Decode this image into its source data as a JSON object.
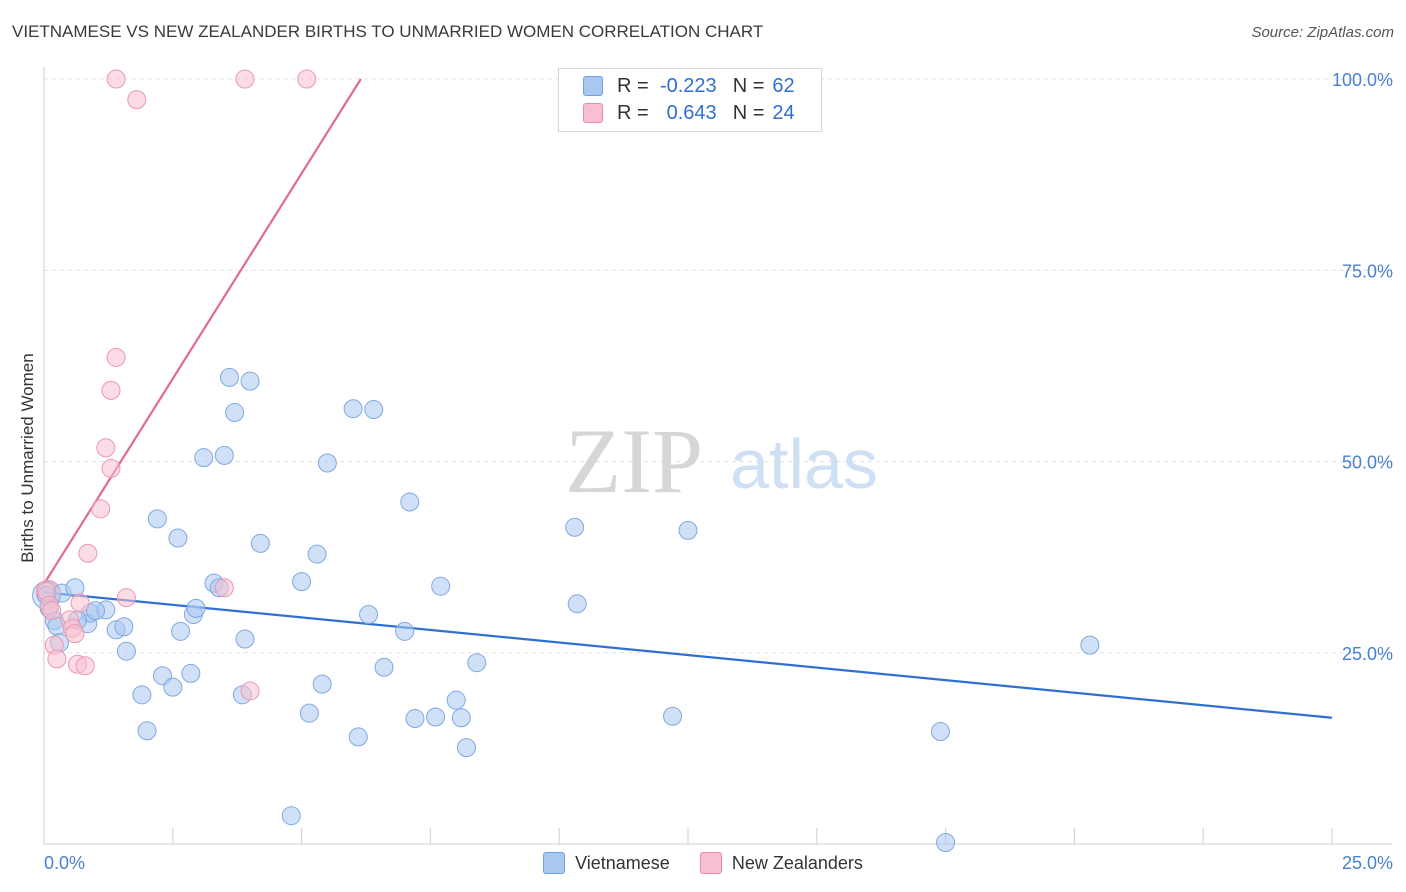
{
  "title": "VIETNAMESE VS NEW ZEALANDER BIRTHS TO UNMARRIED WOMEN CORRELATION CHART",
  "source": "Source: ZipAtlas.com",
  "watermark": {
    "zip": "ZIP",
    "atlas": "atlas"
  },
  "legend": {
    "rows": [
      {
        "r_label": "R =",
        "r_value": "-0.223",
        "n_label": "N =",
        "n_value": "62",
        "color": "#a9c8f0",
        "border": "#6f9fe0"
      },
      {
        "r_label": "R =",
        "r_value": "0.643",
        "n_label": "N =",
        "n_value": "24",
        "color": "#f7bfd0",
        "border": "#e88aa8"
      }
    ]
  },
  "bottom_legend": [
    "Vietnamese",
    "New Zealanders"
  ],
  "chart_data": {
    "type": "scatter",
    "title": "VIETNAMESE VS NEW ZEALANDER BIRTHS TO UNMARRIED WOMEN CORRELATION CHART",
    "xlabel": "",
    "ylabel": "Births to Unmarried Women",
    "xlim": [
      0,
      25
    ],
    "ylim": [
      0,
      100
    ],
    "x_tick_labels": [
      "0.0%",
      "25.0%"
    ],
    "y_ticks": [
      25,
      50,
      75,
      100
    ],
    "y_tick_labels": [
      "25.0%",
      "50.0%",
      "75.0%",
      "100.0%"
    ],
    "colors": {
      "vietnamese": "#2f6fd1",
      "new_zealanders": "#e0689a",
      "tick_text": "#4a80d0"
    },
    "series": [
      {
        "name": "Vietnamese",
        "r": -0.223,
        "n": 62,
        "trend": {
          "x": [
            0,
            25
          ],
          "y": [
            32.9,
            16.5
          ]
        },
        "points": [
          [
            0.05,
            32.5
          ],
          [
            0.1,
            30.8
          ],
          [
            0.2,
            29.2
          ],
          [
            0.25,
            28.5
          ],
          [
            0.3,
            26.3
          ],
          [
            0.35,
            32.8
          ],
          [
            0.6,
            33.5
          ],
          [
            0.85,
            28.8
          ],
          [
            0.9,
            30.2
          ],
          [
            1.2,
            30.6
          ],
          [
            1.4,
            28.0
          ],
          [
            1.6,
            25.2
          ],
          [
            0.65,
            29.3
          ],
          [
            1.0,
            30.5
          ],
          [
            1.55,
            28.4
          ],
          [
            1.9,
            19.5
          ],
          [
            2.0,
            14.8
          ],
          [
            2.2,
            42.5
          ],
          [
            2.3,
            22.0
          ],
          [
            2.5,
            20.5
          ],
          [
            2.6,
            40.0
          ],
          [
            2.65,
            27.8
          ],
          [
            2.85,
            22.3
          ],
          [
            2.9,
            30.0
          ],
          [
            2.95,
            30.8
          ],
          [
            3.1,
            50.5
          ],
          [
            3.3,
            34.1
          ],
          [
            3.4,
            33.5
          ],
          [
            3.5,
            50.8
          ],
          [
            3.6,
            61.0
          ],
          [
            3.7,
            56.4
          ],
          [
            3.85,
            19.5
          ],
          [
            3.9,
            26.8
          ],
          [
            4.0,
            60.5
          ],
          [
            4.2,
            39.3
          ],
          [
            4.8,
            3.7
          ],
          [
            5.0,
            34.3
          ],
          [
            5.15,
            17.1
          ],
          [
            5.3,
            37.9
          ],
          [
            5.4,
            20.9
          ],
          [
            5.5,
            49.8
          ],
          [
            6.0,
            56.9
          ],
          [
            6.1,
            14.0
          ],
          [
            6.3,
            30.0
          ],
          [
            6.4,
            56.8
          ],
          [
            6.6,
            23.1
          ],
          [
            7.0,
            27.8
          ],
          [
            7.1,
            44.7
          ],
          [
            7.2,
            16.4
          ],
          [
            7.6,
            16.6
          ],
          [
            7.7,
            33.7
          ],
          [
            8.0,
            18.8
          ],
          [
            8.1,
            16.5
          ],
          [
            8.2,
            12.6
          ],
          [
            8.4,
            23.7
          ],
          [
            10.3,
            41.4
          ],
          [
            10.35,
            31.4
          ],
          [
            12.2,
            16.7
          ],
          [
            12.5,
            41.0
          ],
          [
            17.4,
            14.7
          ],
          [
            17.5,
            0.2
          ],
          [
            20.3,
            26.0
          ]
        ]
      },
      {
        "name": "New Zealanders",
        "r": 0.643,
        "n": 24,
        "trend": {
          "x": [
            0,
            6.15
          ],
          "y": [
            34.0,
            100.0
          ]
        },
        "points": [
          [
            0.05,
            33.0
          ],
          [
            0.1,
            31.2
          ],
          [
            0.15,
            30.5
          ],
          [
            0.2,
            26.0
          ],
          [
            0.25,
            24.2
          ],
          [
            0.5,
            29.3
          ],
          [
            0.55,
            28.2
          ],
          [
            0.65,
            23.5
          ],
          [
            0.6,
            27.5
          ],
          [
            0.8,
            23.3
          ],
          [
            0.85,
            38.0
          ],
          [
            0.7,
            31.5
          ],
          [
            1.1,
            43.8
          ],
          [
            1.2,
            51.8
          ],
          [
            1.3,
            59.3
          ],
          [
            1.4,
            63.6
          ],
          [
            1.6,
            32.2
          ],
          [
            1.4,
            100.0
          ],
          [
            1.3,
            49.1
          ],
          [
            1.8,
            97.3
          ],
          [
            3.5,
            33.5
          ],
          [
            4.0,
            20.0
          ],
          [
            3.9,
            100.0
          ],
          [
            5.1,
            100.0
          ]
        ]
      }
    ]
  }
}
